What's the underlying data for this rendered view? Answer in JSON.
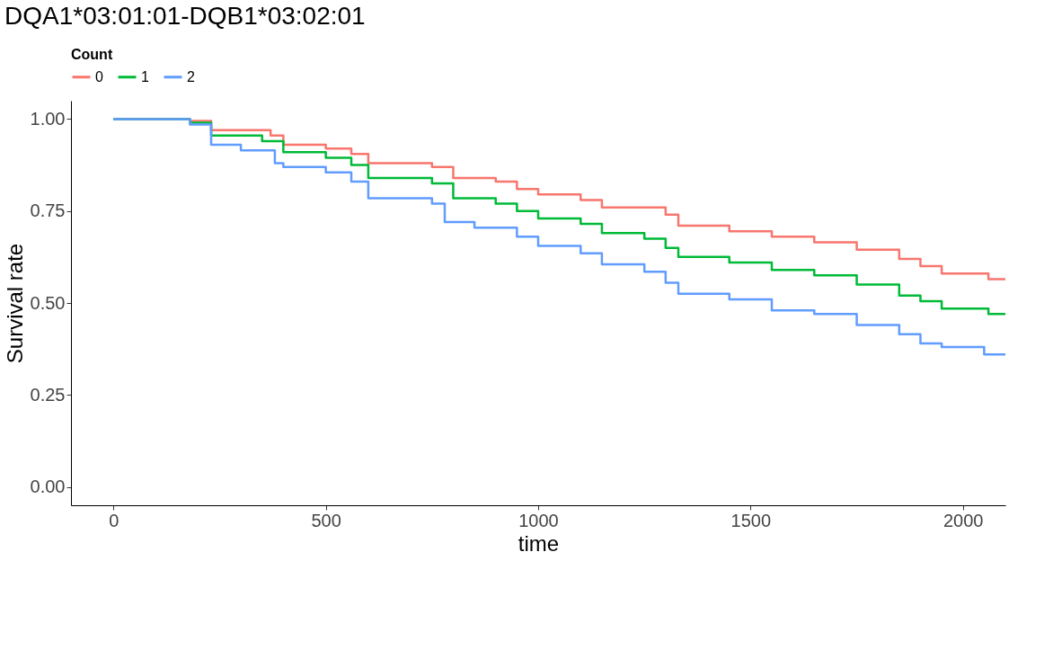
{
  "chart_data": {
    "type": "step",
    "title": "DQA1*03:01:01-DQB1*03:02:01",
    "xlabel": "time",
    "ylabel": "Survival rate",
    "legend_title": "Count",
    "legend": "top",
    "grid": false,
    "xlim": [
      -100,
      2100
    ],
    "xticks": [
      0,
      500,
      1000,
      1500,
      2000
    ],
    "ylim": [
      -0.05,
      1.05
    ],
    "yticks": [
      {
        "value": 0,
        "label": "0.00"
      },
      {
        "value": 0.25,
        "label": "0.25"
      },
      {
        "value": 0.5,
        "label": "0.50"
      },
      {
        "value": 0.75,
        "label": "0.75"
      },
      {
        "value": 1,
        "label": "1.00"
      }
    ],
    "series": [
      {
        "name": "0",
        "color": "#f8766d",
        "x": [
          0,
          180,
          230,
          370,
          400,
          500,
          560,
          600,
          750,
          800,
          900,
          950,
          1000,
          1100,
          1150,
          1300,
          1330,
          1450,
          1550,
          1650,
          1750,
          1850,
          1900,
          1950,
          2060,
          2100
        ],
        "values": [
          1.0,
          0.995,
          0.97,
          0.955,
          0.93,
          0.92,
          0.905,
          0.88,
          0.87,
          0.84,
          0.83,
          0.81,
          0.795,
          0.78,
          0.76,
          0.74,
          0.71,
          0.695,
          0.68,
          0.665,
          0.645,
          0.62,
          0.6,
          0.58,
          0.565,
          0.565
        ]
      },
      {
        "name": "1",
        "color": "#00ba38",
        "x": [
          0,
          180,
          230,
          350,
          400,
          500,
          560,
          600,
          750,
          800,
          900,
          950,
          1000,
          1100,
          1150,
          1250,
          1300,
          1330,
          1450,
          1550,
          1650,
          1750,
          1850,
          1900,
          1950,
          2060,
          2100
        ],
        "values": [
          1.0,
          0.99,
          0.955,
          0.94,
          0.91,
          0.895,
          0.875,
          0.84,
          0.825,
          0.785,
          0.77,
          0.75,
          0.73,
          0.715,
          0.69,
          0.675,
          0.65,
          0.625,
          0.61,
          0.59,
          0.575,
          0.55,
          0.52,
          0.505,
          0.485,
          0.47,
          0.47
        ]
      },
      {
        "name": "2",
        "color": "#619cff",
        "x": [
          0,
          180,
          230,
          300,
          380,
          400,
          500,
          560,
          600,
          750,
          780,
          850,
          950,
          1000,
          1100,
          1150,
          1250,
          1300,
          1330,
          1450,
          1550,
          1650,
          1750,
          1850,
          1900,
          1950,
          2050,
          2100
        ],
        "values": [
          1.0,
          0.985,
          0.93,
          0.915,
          0.88,
          0.87,
          0.855,
          0.83,
          0.785,
          0.77,
          0.72,
          0.705,
          0.68,
          0.655,
          0.635,
          0.605,
          0.585,
          0.555,
          0.525,
          0.51,
          0.48,
          0.47,
          0.44,
          0.415,
          0.39,
          0.38,
          0.36,
          0.36
        ]
      }
    ]
  }
}
